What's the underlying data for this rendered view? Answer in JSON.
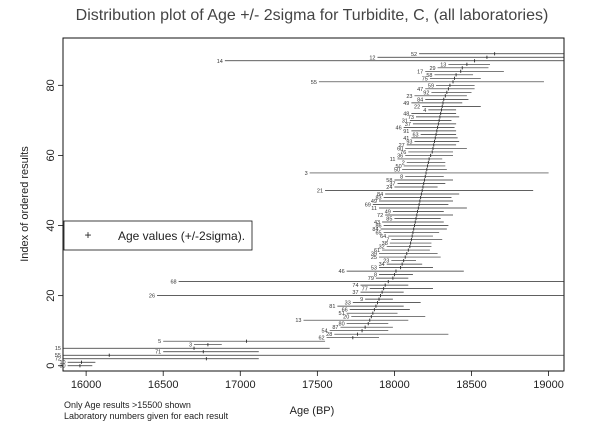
{
  "chart_data": {
    "type": "scatter",
    "title": "Distribution plot of Age +/- 2sigma for Turbidite, C, (all laboratories)",
    "xlabel": "Age (BP)",
    "ylabel": "Index of ordered results",
    "xlim": [
      15850,
      19100
    ],
    "ylim": [
      -1.5,
      93.5
    ],
    "xticks": [
      16000,
      16500,
      17000,
      17500,
      18000,
      18500,
      19000
    ],
    "yticks": [
      0,
      20,
      40,
      60,
      80
    ],
    "grid": false,
    "legend": {
      "position": "center-left",
      "entries": [
        "Age values (+/-2sigma)."
      ],
      "marker": "+"
    },
    "notes": [
      "Only Age results >15500 shown",
      "Laboratory numbers given for each result"
    ],
    "points": [
      {
        "i": 0,
        "age": 15960,
        "lo": 15880,
        "hi": 16040,
        "lab": "30"
      },
      {
        "i": 1,
        "age": 15970,
        "lo": 15880,
        "hi": 16060,
        "lab": "10"
      },
      {
        "i": 2,
        "age": 16780,
        "lo": 15850,
        "hi": 17120,
        "lab": "72"
      },
      {
        "i": 3,
        "age": 16150,
        "lo": 15850,
        "hi": 19100,
        "lab": "55"
      },
      {
        "i": 4,
        "age": 16760,
        "lo": 16500,
        "hi": 17120,
        "lab": "71"
      },
      {
        "i": 5,
        "age": 16700,
        "lo": 15850,
        "hi": 17580,
        "lab": "15"
      },
      {
        "i": 6,
        "age": 16790,
        "lo": 16700,
        "hi": 16880,
        "lab": "3"
      },
      {
        "i": 7,
        "age": 17040,
        "lo": 16500,
        "hi": 17550,
        "lab": "5"
      },
      {
        "i": 8,
        "age": 17730,
        "lo": 17560,
        "hi": 17900,
        "lab": "62"
      },
      {
        "i": 9,
        "age": 17760,
        "lo": 17610,
        "hi": 18350,
        "lab": "28"
      },
      {
        "i": 10,
        "age": 17790,
        "lo": 17580,
        "hi": 17960,
        "lab": "54"
      },
      {
        "i": 11,
        "age": 17810,
        "lo": 17650,
        "hi": 17990,
        "lab": "87"
      },
      {
        "i": 12,
        "age": 17830,
        "lo": 17690,
        "hi": 17960,
        "lab": "80"
      },
      {
        "i": 13,
        "age": 17840,
        "lo": 17410,
        "hi": 18090,
        "lab": "13"
      },
      {
        "i": 14,
        "age": 17850,
        "lo": 17720,
        "hi": 18200,
        "lab": "20"
      },
      {
        "i": 15,
        "age": 17860,
        "lo": 17690,
        "hi": 18020,
        "lab": "51"
      },
      {
        "i": 16,
        "age": 17870,
        "lo": 17710,
        "hi": 18100,
        "lab": "66"
      },
      {
        "i": 17,
        "age": 17880,
        "lo": 17630,
        "hi": 18060,
        "lab": "81"
      },
      {
        "i": 18,
        "age": 17890,
        "lo": 17730,
        "hi": 18170,
        "lab": "33"
      },
      {
        "i": 19,
        "age": 17900,
        "lo": 17810,
        "hi": 17990,
        "lab": "9"
      },
      {
        "i": 20,
        "age": 17910,
        "lo": 16460,
        "hi": 19100,
        "lab": "26"
      },
      {
        "i": 21,
        "age": 17920,
        "lo": 17780,
        "hi": 18060,
        "lab": "37"
      },
      {
        "i": 22,
        "age": 17930,
        "lo": 17840,
        "hi": 18250,
        "lab": "77"
      },
      {
        "i": 23,
        "age": 17940,
        "lo": 17780,
        "hi": 18090,
        "lab": "74"
      },
      {
        "i": 24,
        "age": 17960,
        "lo": 16600,
        "hi": 19100,
        "lab": "68"
      },
      {
        "i": 25,
        "age": 17990,
        "lo": 17880,
        "hi": 18090,
        "lab": "79"
      },
      {
        "i": 26,
        "age": 18000,
        "lo": 17900,
        "hi": 18120,
        "lab": "8"
      },
      {
        "i": 27,
        "age": 18010,
        "lo": 17690,
        "hi": 18450,
        "lab": "46"
      },
      {
        "i": 28,
        "age": 18040,
        "lo": 17900,
        "hi": 18250,
        "lab": "53"
      },
      {
        "i": 29,
        "age": 18050,
        "lo": 17950,
        "hi": 18180,
        "lab": "34"
      },
      {
        "i": 30,
        "age": 18060,
        "lo": 17980,
        "hi": 18140,
        "lab": "23"
      },
      {
        "i": 31,
        "age": 18070,
        "lo": 17900,
        "hi": 18300,
        "lab": "25"
      },
      {
        "i": 32,
        "age": 18080,
        "lo": 17900,
        "hi": 18280,
        "lab": "39"
      },
      {
        "i": 33,
        "age": 18090,
        "lo": 17920,
        "hi": 18230,
        "lab": "61"
      },
      {
        "i": 34,
        "age": 18100,
        "lo": 17950,
        "hi": 18240,
        "lab": "32"
      },
      {
        "i": 35,
        "age": 18105,
        "lo": 17970,
        "hi": 18240,
        "lab": "38"
      },
      {
        "i": 36,
        "age": 18110,
        "lo": 17980,
        "hi": 18310,
        "lab": "7"
      },
      {
        "i": 37,
        "age": 18115,
        "lo": 17960,
        "hi": 18250,
        "lab": "64"
      },
      {
        "i": 38,
        "age": 18120,
        "lo": 17930,
        "hi": 18290,
        "lab": "65"
      },
      {
        "i": 39,
        "age": 18125,
        "lo": 17910,
        "hi": 18340,
        "lab": "84"
      },
      {
        "i": 40,
        "age": 18130,
        "lo": 17930,
        "hi": 18350,
        "lab": "86"
      },
      {
        "i": 41,
        "age": 18135,
        "lo": 17920,
        "hi": 18320,
        "lab": "43"
      },
      {
        "i": 42,
        "age": 18140,
        "lo": 18000,
        "hi": 18300,
        "lab": "85"
      },
      {
        "i": 43,
        "age": 18145,
        "lo": 17940,
        "hi": 18380,
        "lab": "72"
      },
      {
        "i": 44,
        "age": 18150,
        "lo": 17990,
        "hi": 18320,
        "lab": "49"
      },
      {
        "i": 45,
        "age": 18155,
        "lo": 17900,
        "hi": 18470,
        "lab": "11"
      },
      {
        "i": 46,
        "age": 18160,
        "lo": 17860,
        "hi": 18350,
        "lab": "69"
      },
      {
        "i": 47,
        "age": 18165,
        "lo": 17900,
        "hi": 18380,
        "lab": "49"
      },
      {
        "i": 48,
        "age": 18170,
        "lo": 17930,
        "hi": 18370,
        "lab": "83"
      },
      {
        "i": 49,
        "age": 18175,
        "lo": 17940,
        "hi": 18420,
        "lab": "84"
      },
      {
        "i": 50,
        "age": 18180,
        "lo": 17550,
        "hi": 18900,
        "lab": "21"
      },
      {
        "i": 51,
        "age": 18185,
        "lo": 18000,
        "hi": 18280,
        "lab": "24"
      },
      {
        "i": 52,
        "age": 18190,
        "lo": 18020,
        "hi": 18330,
        "lab": "37"
      },
      {
        "i": 53,
        "age": 18195,
        "lo": 18000,
        "hi": 18380,
        "lab": "58"
      },
      {
        "i": 54,
        "age": 18200,
        "lo": 18070,
        "hi": 18320,
        "lab": "8"
      },
      {
        "i": 55,
        "age": 18205,
        "lo": 17450,
        "hi": 19000,
        "lab": "3"
      },
      {
        "i": 56,
        "age": 18210,
        "lo": 18050,
        "hi": 18340,
        "lab": "50"
      },
      {
        "i": 57,
        "age": 18215,
        "lo": 18060,
        "hi": 18330,
        "lab": "50"
      },
      {
        "i": 58,
        "age": 18220,
        "lo": 18080,
        "hi": 18330,
        "lab": "2"
      },
      {
        "i": 59,
        "age": 18225,
        "lo": 18020,
        "hi": 18310,
        "lab": "11"
      },
      {
        "i": 60,
        "age": 18235,
        "lo": 18070,
        "hi": 18380,
        "lab": "36"
      },
      {
        "i": 61,
        "age": 18245,
        "lo": 18090,
        "hi": 18380,
        "lab": "76"
      },
      {
        "i": 62,
        "age": 18250,
        "lo": 18070,
        "hi": 18470,
        "lab": "60"
      },
      {
        "i": 63,
        "age": 18255,
        "lo": 18080,
        "hi": 18400,
        "lab": "27"
      },
      {
        "i": 64,
        "age": 18260,
        "lo": 18130,
        "hi": 18420,
        "lab": "93"
      },
      {
        "i": 65,
        "age": 18265,
        "lo": 18110,
        "hi": 18410,
        "lab": "41"
      },
      {
        "i": 66,
        "age": 18270,
        "lo": 18170,
        "hi": 18400,
        "lab": "63"
      },
      {
        "i": 67,
        "age": 18275,
        "lo": 18110,
        "hi": 18400,
        "lab": "91"
      },
      {
        "i": 68,
        "age": 18280,
        "lo": 18060,
        "hi": 18390,
        "lab": "46"
      },
      {
        "i": 69,
        "age": 18285,
        "lo": 18120,
        "hi": 18400,
        "lab": "37"
      },
      {
        "i": 70,
        "age": 18290,
        "lo": 18100,
        "hi": 18370,
        "lab": "31"
      },
      {
        "i": 71,
        "age": 18295,
        "lo": 18140,
        "hi": 18420,
        "lab": "73"
      },
      {
        "i": 72,
        "age": 18300,
        "lo": 18110,
        "hi": 18400,
        "lab": "48"
      },
      {
        "i": 73,
        "age": 18305,
        "lo": 18220,
        "hi": 18400,
        "lab": "4"
      },
      {
        "i": 74,
        "age": 18310,
        "lo": 18180,
        "hi": 18560,
        "lab": "22"
      },
      {
        "i": 75,
        "age": 18315,
        "lo": 18110,
        "hi": 18440,
        "lab": "49"
      },
      {
        "i": 76,
        "age": 18320,
        "lo": 18200,
        "hi": 18480,
        "lab": "84"
      },
      {
        "i": 77,
        "age": 18330,
        "lo": 18130,
        "hi": 18470,
        "lab": "23"
      },
      {
        "i": 78,
        "age": 18340,
        "lo": 18240,
        "hi": 18500,
        "lab": "92"
      },
      {
        "i": 79,
        "age": 18350,
        "lo": 18200,
        "hi": 18520,
        "lab": "47"
      },
      {
        "i": 80,
        "age": 18360,
        "lo": 18270,
        "hi": 18520,
        "lab": "59"
      },
      {
        "i": 81,
        "age": 18380,
        "lo": 17510,
        "hi": 18970,
        "lab": "55"
      },
      {
        "i": 82,
        "age": 18390,
        "lo": 18230,
        "hi": 18560,
        "lab": "75"
      },
      {
        "i": 83,
        "age": 18400,
        "lo": 18260,
        "hi": 18510,
        "lab": "58"
      },
      {
        "i": 84,
        "age": 18430,
        "lo": 18200,
        "hi": 18710,
        "lab": "17"
      },
      {
        "i": 85,
        "age": 18440,
        "lo": 18280,
        "hi": 18610,
        "lab": "29"
      },
      {
        "i": 86,
        "age": 18470,
        "lo": 18350,
        "hi": 18620,
        "lab": "13"
      },
      {
        "i": 87,
        "age": 18520,
        "lo": 16900,
        "hi": 19100,
        "lab": "14"
      },
      {
        "i": 88,
        "age": 18600,
        "lo": 17890,
        "hi": 19100,
        "lab": "12"
      },
      {
        "i": 89,
        "age": 18650,
        "lo": 18160,
        "hi": 19100,
        "lab": "52"
      }
    ]
  },
  "colors": {
    "line": "#2b2b2b",
    "axis": "#111111",
    "text": "#222222",
    "title": "#444444"
  }
}
